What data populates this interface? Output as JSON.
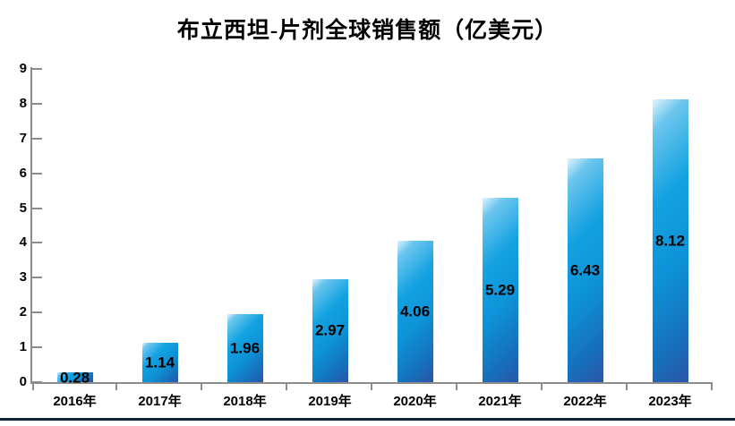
{
  "chart_data": {
    "type": "bar",
    "title": "布立西坦-片剂全球销售额（亿美元）",
    "categories": [
      "2016年",
      "2017年",
      "2018年",
      "2019年",
      "2020年",
      "2021年",
      "2022年",
      "2023年"
    ],
    "values": [
      0.28,
      1.14,
      1.96,
      2.97,
      4.06,
      5.29,
      6.43,
      8.12
    ],
    "value_labels": [
      "0.28",
      "1.14",
      "1.96",
      "2.97",
      "4.06",
      "5.29",
      "6.43",
      "8.12"
    ],
    "xlabel": "",
    "ylabel": "",
    "ylim": [
      0,
      9
    ],
    "y_ticks": [
      0,
      1,
      2,
      3,
      4,
      5,
      6,
      7,
      8,
      9
    ],
    "grid": false,
    "legend": false,
    "bar_label_position": "inside-center"
  },
  "colors": {
    "bar_gradient_light": "#e2f4fd",
    "bar_gradient_mid": "#0d9be0",
    "bar_gradient_dark": "#2b55a6",
    "axis": "#8c8c8c",
    "text": "#000000",
    "bottom_rule": "#10243e",
    "background": "#ffffff"
  }
}
